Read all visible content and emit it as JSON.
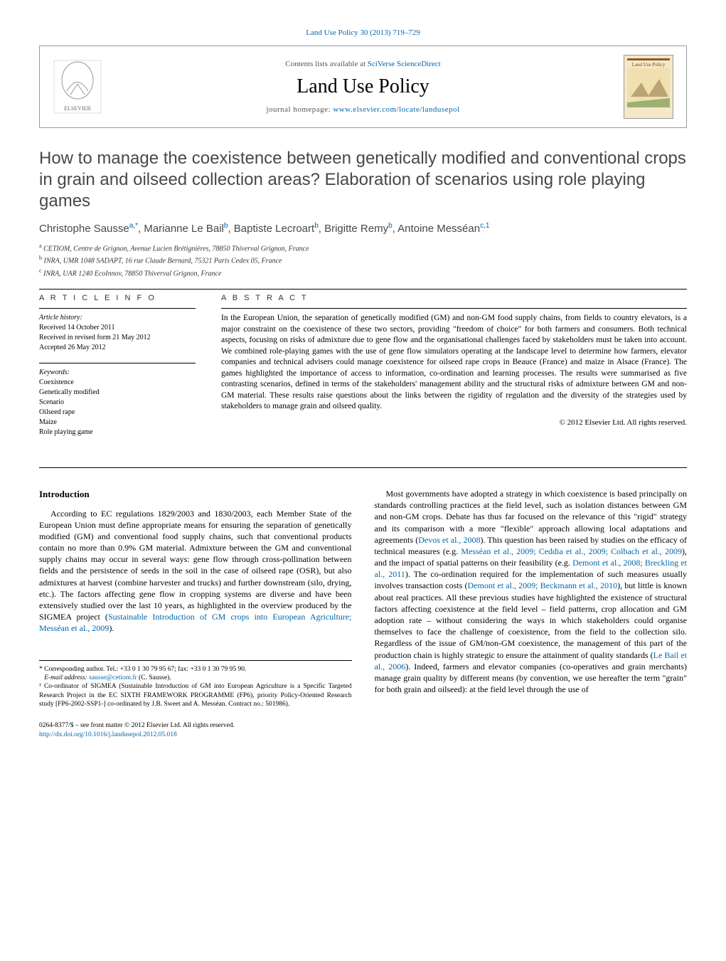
{
  "journal_ref": "Land Use Policy 30 (2013) 719–729",
  "header": {
    "contents_prefix": "Contents lists available at ",
    "contents_link": "SciVerse ScienceDirect",
    "journal_name": "Land Use Policy",
    "homepage_prefix": "journal homepage: ",
    "homepage_link": "www.elsevier.com/locate/landusepol",
    "cover_label": "Land Use Policy"
  },
  "title": "How to manage the coexistence between genetically modified and conventional crops in grain and oilseed collection areas? Elaboration of scenarios using role playing games",
  "authors_html": "Christophe Sausse<sup>a,*</sup>, Marianne Le Bail<sup>b</sup>, Baptiste Lecroart<sup>b</sup>, Brigitte Remy<sup>b</sup>, Antoine Messéan<sup>c,1</sup>",
  "affiliations": {
    "a": "CETIOM, Centre de Grignon, Avenue Lucien Brétignières, 78850 Thiverval Grignon, France",
    "b": "INRA, UMR 1048 SADAPT, 16 rue Claude Bernard, 75321 Paris Cedex 05, France",
    "c": "INRA, UAR 1240 EcoInnov, 78850 Thiverval Grignon, France"
  },
  "article_info": {
    "heading": "A R T I C L E   I N F O",
    "history_label": "Article history:",
    "received": "Received 14 October 2011",
    "revised": "Received in revised form 21 May 2012",
    "accepted": "Accepted 26 May 2012",
    "keywords_label": "Keywords:",
    "keywords": [
      "Coexistence",
      "Genetically modified",
      "Scenario",
      "Oilseed rape",
      "Maize",
      "Role playing game"
    ]
  },
  "abstract": {
    "heading": "A B S T R A C T",
    "text": "In the European Union, the separation of genetically modified (GM) and non-GM food supply chains, from fields to country elevators, is a major constraint on the coexistence of these two sectors, providing \"freedom of choice\" for both farmers and consumers. Both technical aspects, focusing on risks of admixture due to gene flow and the organisational challenges faced by stakeholders must be taken into account. We combined role-playing games with the use of gene flow simulators operating at the landscape level to determine how farmers, elevator companies and technical advisers could manage coexistence for oilseed rape crops in Beauce (France) and maize in Alsace (France). The games highlighted the importance of access to information, co-ordination and learning processes. The results were summarised as five contrasting scenarios, defined in terms of the stakeholders' management ability and the structural risks of admixture between GM and non-GM material. These results raise questions about the links between the rigidity of regulation and the diversity of the strategies used by stakeholders to manage grain and oilseed quality.",
    "copyright": "© 2012 Elsevier Ltd. All rights reserved."
  },
  "intro": {
    "heading": "Introduction",
    "col1_p1_a": "According to EC regulations 1829/2003 and 1830/2003, each Member State of the European Union must define appropriate means for ensuring the separation of genetically modified (GM) and conventional food supply chains, such that conventional products contain no more than 0.9% GM material. Admixture between the GM and conventional supply chains may occur in several ways: gene flow through cross-pollination between fields and the persistence of seeds in the soil in the case of oilseed rape (OSR), but also admixtures at harvest (combine harvester and trucks) and further downstream (silo, drying, etc.). The factors affecting gene flow in cropping systems are diverse and have been extensively studied over the last 10 years, as highlighted in the overview produced by the SIGMEA project (",
    "col1_link1": "Sustainable Introduction of GM crops into European Agriculture; Messéan et al., 2009",
    "col1_p1_b": ").",
    "col2_p1_a": "Most governments have adopted a strategy in which coexistence is based principally on standards controlling practices at the field level, such as isolation distances between GM and non-GM crops. Debate has thus far focused on the relevance of this \"rigid\" strategy and its comparison with a more \"flexible\" approach allowing local adaptations and agreements (",
    "col2_link1": "Devos et al., 2008",
    "col2_p1_b": "). This question has been raised by studies on the efficacy of technical measures (e.g. ",
    "col2_link2": "Messéan et al., 2009; Ceddia et al., 2009; Colbach et al., 2009",
    "col2_p1_c": "), and the impact of spatial patterns on their feasibility (e.g. ",
    "col2_link3": "Demont et al., 2008; Breckling et al., 2011",
    "col2_p1_d": "). The co-ordination required for the implementation of such measures usually involves transaction costs (",
    "col2_link4": "Demont et al., 2009; Beckmann et al., 2010",
    "col2_p1_e": "), but little is known about real practices. All these previous studies have highlighted the existence of structural factors affecting coexistence at the field level – field patterns, crop allocation and GM adoption rate – without considering the ways in which stakeholders could organise themselves to face the challenge of coexistence, from the field to the collection silo. Regardless of the issue of GM/non-GM coexistence, the management of this part of the production chain is highly strategic to ensure the attainment of quality standards (",
    "col2_link5": "Le Bail et al., 2006",
    "col2_p1_f": "). Indeed, farmers and elevator companies (co-operatives and grain merchants) manage grain quality by different means (by convention, we use hereafter the term \"grain\" for both grain and oilseed): at the field level through the use of"
  },
  "footnotes": {
    "corr_label": "* Corresponding author. Tel.: +33 0 1 30 79 95 67; fax: +33 0 1 30 79 95 90.",
    "email_label": "E-mail address: ",
    "email": "sausse@cetiom.fr",
    "email_suffix": " (C. Sausse).",
    "note1": "¹ Co-ordinator of SIGMEA (Sustainable Introduction of GM into European Agriculture is a Specific Targeted Research Project in the EC SIXTH FRAMEWORK PROGRAMME (FP6), priority Policy-Oriented Research study [FP6-2002-SSP1-] co-ordinated by J.B. Sweet and A. Messéan. Contract no.: 501986)."
  },
  "footer": {
    "line1": "0264-8377/$ – see front matter © 2012 Elsevier Ltd. All rights reserved.",
    "doi": "http://dx.doi.org/10.1016/j.landusepol.2012.05.018"
  },
  "colors": {
    "link": "#0066aa",
    "title_gray": "#48484a",
    "rule": "#000000",
    "border": "#999999"
  }
}
